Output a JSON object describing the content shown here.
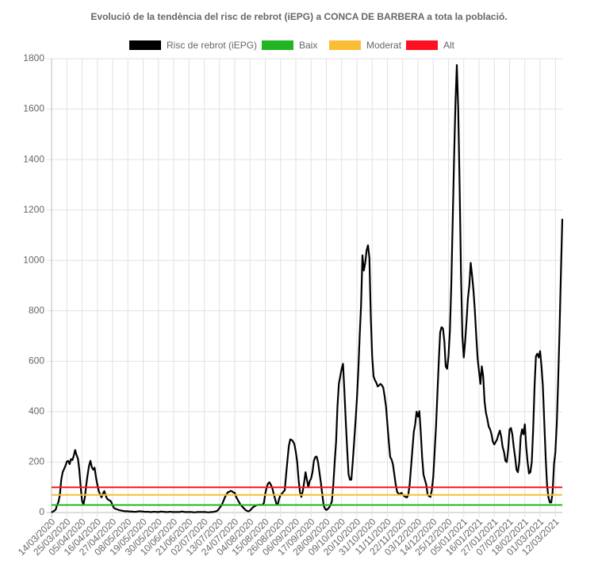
{
  "chart_data": {
    "type": "line",
    "title": "Evolució de la tendència del risc de rebrot (iEPG) a CONCA DE BARBERA a tota la població.",
    "categories": [
      "14/03/2020",
      null,
      null,
      null,
      null,
      null,
      null,
      null,
      null,
      null,
      null,
      "25/03/2020",
      null,
      null,
      null,
      null,
      null,
      null,
      null,
      null,
      null,
      null,
      "05/04/2020",
      null,
      null,
      null,
      null,
      null,
      null,
      null,
      null,
      null,
      null,
      "16/04/2020",
      null,
      null,
      null,
      null,
      null,
      null,
      null,
      null,
      null,
      null,
      "27/04/2020",
      null,
      null,
      null,
      null,
      null,
      null,
      null,
      null,
      null,
      null,
      "08/05/2020",
      null,
      null,
      null,
      null,
      null,
      null,
      null,
      null,
      null,
      null,
      "19/05/2020",
      null,
      null,
      null,
      null,
      null,
      null,
      null,
      null,
      null,
      null,
      "30/05/2020",
      null,
      null,
      null,
      null,
      null,
      null,
      null,
      null,
      null,
      null,
      "10/06/2020",
      null,
      null,
      null,
      null,
      null,
      null,
      null,
      null,
      null,
      null,
      "21/06/2020",
      null,
      null,
      null,
      null,
      null,
      null,
      null,
      null,
      null,
      null,
      "02/07/2020",
      null,
      null,
      null,
      null,
      null,
      null,
      null,
      null,
      null,
      null,
      "13/07/2020",
      null,
      null,
      null,
      null,
      null,
      null,
      null,
      null,
      null,
      null,
      "24/07/2020",
      null,
      null,
      null,
      null,
      null,
      null,
      null,
      null,
      null,
      null,
      "04/08/2020",
      null,
      null,
      null,
      null,
      null,
      null,
      null,
      null,
      null,
      null,
      "15/08/2020",
      null,
      null,
      null,
      null,
      null,
      null,
      null,
      null,
      null,
      null,
      "26/08/2020",
      null,
      null,
      null,
      null,
      null,
      null,
      null,
      null,
      null,
      null,
      "06/09/2020",
      null,
      null,
      null,
      null,
      null,
      null,
      null,
      null,
      null,
      null,
      "17/09/2020",
      null,
      null,
      null,
      null,
      null,
      null,
      null,
      null,
      null,
      null,
      "28/09/2020",
      null,
      null,
      null,
      null,
      null,
      null,
      null,
      null,
      null,
      null,
      "09/10/2020",
      null,
      null,
      null,
      null,
      null,
      null,
      null,
      null,
      null,
      null,
      "20/10/2020",
      null,
      null,
      null,
      null,
      null,
      null,
      null,
      null,
      null,
      null,
      "31/10/2020",
      null,
      null,
      null,
      null,
      null,
      null,
      null,
      null,
      null,
      null,
      "11/11/2020",
      null,
      null,
      null,
      null,
      null,
      null,
      null,
      null,
      null,
      null,
      "22/11/2020",
      null,
      null,
      null,
      null,
      null,
      null,
      null,
      null,
      null,
      null,
      "03/12/2020",
      null,
      null,
      null,
      null,
      null,
      null,
      null,
      null,
      null,
      null,
      "14/12/2020",
      null,
      null,
      null,
      null,
      null,
      null,
      null,
      null,
      null,
      null,
      "25/12/2020",
      null,
      null,
      null,
      null,
      null,
      null,
      null,
      null,
      null,
      null,
      "05/01/2021",
      null,
      null,
      null,
      null,
      null,
      null,
      null,
      null,
      null,
      null,
      "16/01/2021",
      null,
      null,
      null,
      null,
      null,
      null,
      null,
      null,
      null,
      null,
      "27/01/2021",
      null,
      null,
      null,
      null,
      null,
      null,
      null,
      null,
      null,
      null,
      "07/02/2021",
      null,
      null,
      null,
      null,
      null,
      null,
      null,
      null,
      null,
      null,
      "18/02/2021",
      null,
      null,
      null,
      null,
      null,
      null,
      null,
      null,
      null,
      null,
      "01/03/2021",
      null,
      null,
      null,
      null,
      null,
      null,
      null,
      null,
      null,
      null,
      "12/03/2021",
      null,
      null,
      null,
      null,
      null
    ],
    "series": [
      {
        "name": "Risc de rebrot (iEPG)",
        "color": "#000000",
        "values": [
          0,
          4,
          7,
          12,
          30,
          42,
          70,
          130,
          160,
          172,
          185,
          202,
          205,
          192,
          212,
          208,
          225,
          248,
          228,
          214,
          170,
          100,
          45,
          32,
          60,
          110,
          150,
          185,
          205,
          180,
          170,
          178,
          140,
          110,
          85,
          72,
          60,
          75,
          85,
          68,
          55,
          50,
          48,
          42,
          28,
          18,
          15,
          13,
          11,
          9,
          8,
          7,
          6,
          5,
          5,
          5,
          4,
          4,
          4,
          3,
          3,
          3,
          4,
          5,
          5,
          4,
          4,
          3,
          3,
          3,
          3,
          2,
          2,
          3,
          3,
          3,
          2,
          2,
          3,
          4,
          3,
          3,
          2,
          2,
          2,
          3,
          3,
          2,
          2,
          2,
          2,
          2,
          2,
          3,
          4,
          3,
          2,
          2,
          2,
          2,
          2,
          2,
          1,
          1,
          1,
          2,
          2,
          2,
          2,
          2,
          2,
          2,
          1,
          1,
          1,
          2,
          2,
          3,
          4,
          6,
          10,
          18,
          25,
          35,
          48,
          62,
          72,
          80,
          82,
          86,
          84,
          80,
          78,
          62,
          52,
          42,
          32,
          26,
          20,
          14,
          9,
          6,
          5,
          8,
          14,
          20,
          24,
          27,
          30,
          30,
          31,
          30,
          30,
          38,
          75,
          100,
          115,
          120,
          110,
          98,
          75,
          55,
          35,
          32,
          55,
          70,
          75,
          82,
          88,
          150,
          210,
          265,
          290,
          288,
          282,
          270,
          240,
          200,
          130,
          80,
          62,
          85,
          120,
          160,
          130,
          100,
          125,
          135,
          160,
          205,
          220,
          222,
          200,
          160,
          120,
          75,
          30,
          15,
          10,
          14,
          20,
          30,
          45,
          110,
          200,
          280,
          420,
          510,
          540,
          570,
          590,
          480,
          360,
          250,
          150,
          130,
          130,
          200,
          280,
          360,
          450,
          560,
          700,
          820,
          1020,
          960,
          990,
          1040,
          1060,
          1010,
          780,
          620,
          540,
          525,
          515,
          500,
          505,
          510,
          505,
          495,
          460,
          420,
          350,
          280,
          220,
          210,
          190,
          150,
          110,
          82,
          75,
          72,
          78,
          72,
          66,
          62,
          60,
          70,
          110,
          180,
          250,
          320,
          350,
          400,
          380,
          402,
          320,
          220,
          150,
          130,
          110,
          70,
          65,
          62,
          90,
          140,
          240,
          340,
          470,
          600,
          715,
          735,
          730,
          680,
          580,
          570,
          620,
          720,
          900,
          1150,
          1400,
          1620,
          1775,
          1600,
          1300,
          950,
          700,
          615,
          680,
          760,
          850,
          900,
          990,
          940,
          880,
          800,
          700,
          610,
          560,
          510,
          580,
          540,
          440,
          395,
          370,
          340,
          330,
          310,
          280,
          270,
          280,
          290,
          310,
          325,
          300,
          260,
          240,
          205,
          200,
          250,
          330,
          335,
          310,
          260,
          220,
          170,
          160,
          200,
          300,
          330,
          310,
          350,
          260,
          200,
          155,
          160,
          200,
          330,
          500,
          620,
          630,
          615,
          640,
          580,
          500,
          360,
          220,
          110,
          60,
          40,
          40,
          80,
          190,
          240,
          350,
          520,
          720,
          950,
          1165
        ]
      },
      {
        "name": "Baix",
        "color": "#22b522",
        "value": 30
      },
      {
        "name": "Moderat",
        "color": "#f9be35",
        "value": 70
      },
      {
        "name": "Alt",
        "color": "#ff1020",
        "value": 100
      }
    ],
    "ylim": [
      0,
      1800
    ],
    "yticks": [
      0,
      200,
      400,
      600,
      800,
      1000,
      1200,
      1400,
      1600,
      1800
    ],
    "grid": true
  }
}
